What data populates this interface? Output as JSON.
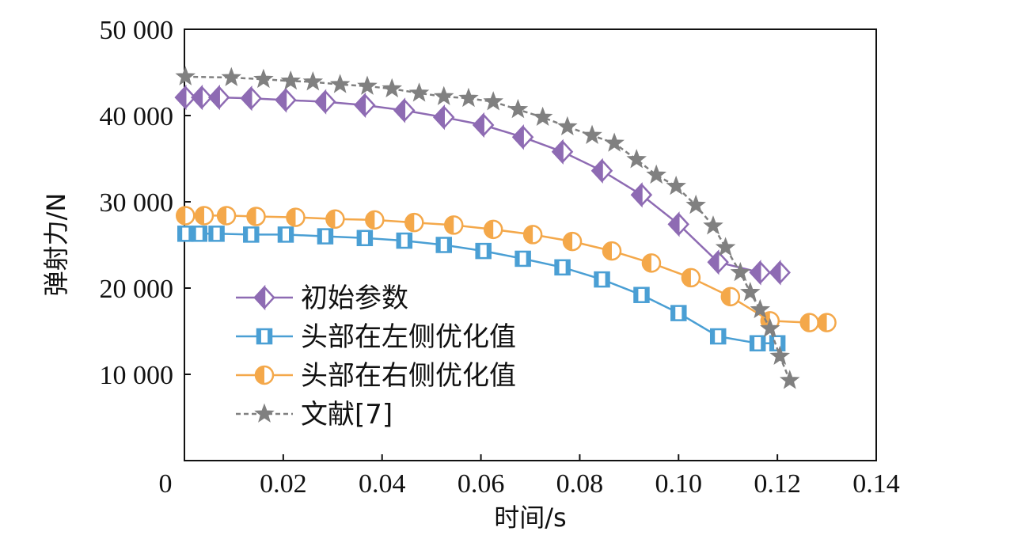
{
  "chart_data": {
    "type": "line",
    "xlabel": "时间/s",
    "ylabel": "弹射力/N",
    "xlim": [
      0,
      0.14
    ],
    "ylim": [
      0,
      50000
    ],
    "x_ticks": [
      0,
      0.02,
      0.04,
      0.06,
      0.08,
      0.1,
      0.12,
      0.14
    ],
    "x_tick_labels": [
      "0",
      "0.02",
      "0.04",
      "0.06",
      "0.08",
      "0.10",
      "0.12",
      "0.14"
    ],
    "y_ticks": [
      10000,
      20000,
      30000,
      40000,
      50000
    ],
    "y_tick_labels": [
      "10 000",
      "20 000",
      "30 000",
      "40 000",
      "50 000"
    ],
    "legend_position": "lower-left",
    "grid": false,
    "series": [
      {
        "name": "初始参数",
        "color": "#8e6bb3",
        "marker": "diamond-half",
        "line": "solid",
        "points": [
          [
            0.0002,
            42100
          ],
          [
            0.0035,
            42100
          ],
          [
            0.007,
            42100
          ],
          [
            0.0135,
            42000
          ],
          [
            0.0205,
            41800
          ],
          [
            0.0285,
            41600
          ],
          [
            0.0365,
            41200
          ],
          [
            0.0445,
            40600
          ],
          [
            0.0525,
            39800
          ],
          [
            0.0605,
            38900
          ],
          [
            0.0685,
            37500
          ],
          [
            0.0765,
            35800
          ],
          [
            0.0845,
            33600
          ],
          [
            0.0925,
            30800
          ],
          [
            0.1,
            27400
          ],
          [
            0.108,
            23000
          ],
          [
            0.1165,
            21800
          ],
          [
            0.1205,
            21800
          ]
        ]
      },
      {
        "name": "头部在左侧优化值",
        "color": "#4a9fd4",
        "marker": "square-half",
        "line": "solid",
        "points": [
          [
            0.0002,
            26300
          ],
          [
            0.003,
            26300
          ],
          [
            0.0065,
            26300
          ],
          [
            0.0135,
            26200
          ],
          [
            0.0205,
            26200
          ],
          [
            0.0285,
            26000
          ],
          [
            0.0365,
            25800
          ],
          [
            0.0445,
            25500
          ],
          [
            0.0525,
            25000
          ],
          [
            0.0605,
            24300
          ],
          [
            0.0685,
            23400
          ],
          [
            0.0765,
            22400
          ],
          [
            0.0845,
            21000
          ],
          [
            0.0925,
            19200
          ],
          [
            0.1,
            17100
          ],
          [
            0.108,
            14400
          ],
          [
            0.116,
            13600
          ],
          [
            0.12,
            13600
          ]
        ]
      },
      {
        "name": "头部在右侧优化值",
        "color": "#f4a84a",
        "marker": "circle-half",
        "line": "solid",
        "points": [
          [
            0.0002,
            28400
          ],
          [
            0.004,
            28400
          ],
          [
            0.0085,
            28400
          ],
          [
            0.0145,
            28300
          ],
          [
            0.0225,
            28200
          ],
          [
            0.0305,
            28000
          ],
          [
            0.0385,
            27900
          ],
          [
            0.0465,
            27600
          ],
          [
            0.0545,
            27300
          ],
          [
            0.0625,
            26800
          ],
          [
            0.0705,
            26200
          ],
          [
            0.0785,
            25400
          ],
          [
            0.0865,
            24300
          ],
          [
            0.0945,
            22900
          ],
          [
            0.1025,
            21200
          ],
          [
            0.1105,
            19000
          ],
          [
            0.1185,
            16200
          ],
          [
            0.1265,
            16000
          ],
          [
            0.13,
            16000
          ]
        ]
      },
      {
        "name": "文献[7]",
        "color": "#808080",
        "marker": "star",
        "line": "dashed",
        "points": [
          [
            0.0002,
            44500
          ],
          [
            0.0095,
            44400
          ],
          [
            0.016,
            44200
          ],
          [
            0.0215,
            44000
          ],
          [
            0.026,
            43900
          ],
          [
            0.0315,
            43600
          ],
          [
            0.037,
            43400
          ],
          [
            0.042,
            43100
          ],
          [
            0.0475,
            42600
          ],
          [
            0.0525,
            42200
          ],
          [
            0.0575,
            42000
          ],
          [
            0.0625,
            41600
          ],
          [
            0.0675,
            40700
          ],
          [
            0.0725,
            39800
          ],
          [
            0.0775,
            38700
          ],
          [
            0.0825,
            37700
          ],
          [
            0.087,
            36800
          ],
          [
            0.0915,
            34900
          ],
          [
            0.0955,
            33100
          ],
          [
            0.0995,
            31800
          ],
          [
            0.1035,
            29600
          ],
          [
            0.107,
            27200
          ],
          [
            0.1095,
            24700
          ],
          [
            0.1125,
            21800
          ],
          [
            0.1145,
            19500
          ],
          [
            0.1165,
            17500
          ],
          [
            0.1185,
            15300
          ],
          [
            0.1205,
            12100
          ],
          [
            0.1225,
            9300
          ]
        ]
      }
    ]
  }
}
